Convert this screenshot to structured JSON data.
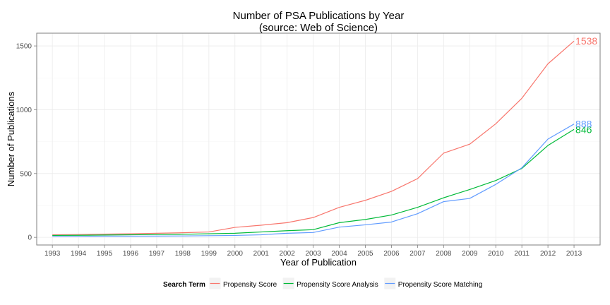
{
  "chart_data": {
    "type": "line",
    "title": "Number of PSA Publications by Year",
    "subtitle": "(source: Web of Science)",
    "xlabel": "Year of Publication",
    "ylabel": "Number of Publications",
    "x": [
      1993,
      1994,
      1995,
      1996,
      1997,
      1998,
      1999,
      2000,
      2001,
      2002,
      2003,
      2004,
      2005,
      2006,
      2007,
      2008,
      2009,
      2010,
      2011,
      2012,
      2013
    ],
    "x_ticks": [
      "1993",
      "1994",
      "1995",
      "1996",
      "1997",
      "1998",
      "1999",
      "2000",
      "2001",
      "2002",
      "2003",
      "2004",
      "2005",
      "2006",
      "2007",
      "2008",
      "2009",
      "2010",
      "2011",
      "2012",
      "2013"
    ],
    "y_ticks": [
      0,
      500,
      1000,
      1500
    ],
    "y_tick_labels": [
      "0",
      "500",
      "1000",
      "1500"
    ],
    "xlim": [
      1992.4,
      2014.0
    ],
    "ylim": [
      -60,
      1600
    ],
    "grid": true,
    "legend_position": "bottom",
    "legend_title": "Search Term",
    "series": [
      {
        "name": "Propensity Score",
        "color": "#F8766D",
        "values": [
          20,
          22,
          25,
          28,
          32,
          36,
          42,
          78,
          95,
          115,
          155,
          235,
          290,
          360,
          460,
          660,
          730,
          890,
          1090,
          1360,
          1538
        ]
      },
      {
        "name": "Propensity Score Analysis",
        "color": "#00BA38",
        "values": [
          15,
          16,
          18,
          20,
          22,
          24,
          28,
          32,
          42,
          52,
          60,
          115,
          140,
          175,
          235,
          310,
          375,
          445,
          540,
          720,
          846
        ]
      },
      {
        "name": "Propensity Score Matching",
        "color": "#619CFF",
        "values": [
          8,
          8,
          9,
          9,
          10,
          11,
          13,
          15,
          20,
          32,
          38,
          80,
          98,
          120,
          185,
          280,
          305,
          415,
          545,
          770,
          888
        ]
      }
    ],
    "end_labels": [
      "1538",
      "846",
      "888"
    ]
  }
}
